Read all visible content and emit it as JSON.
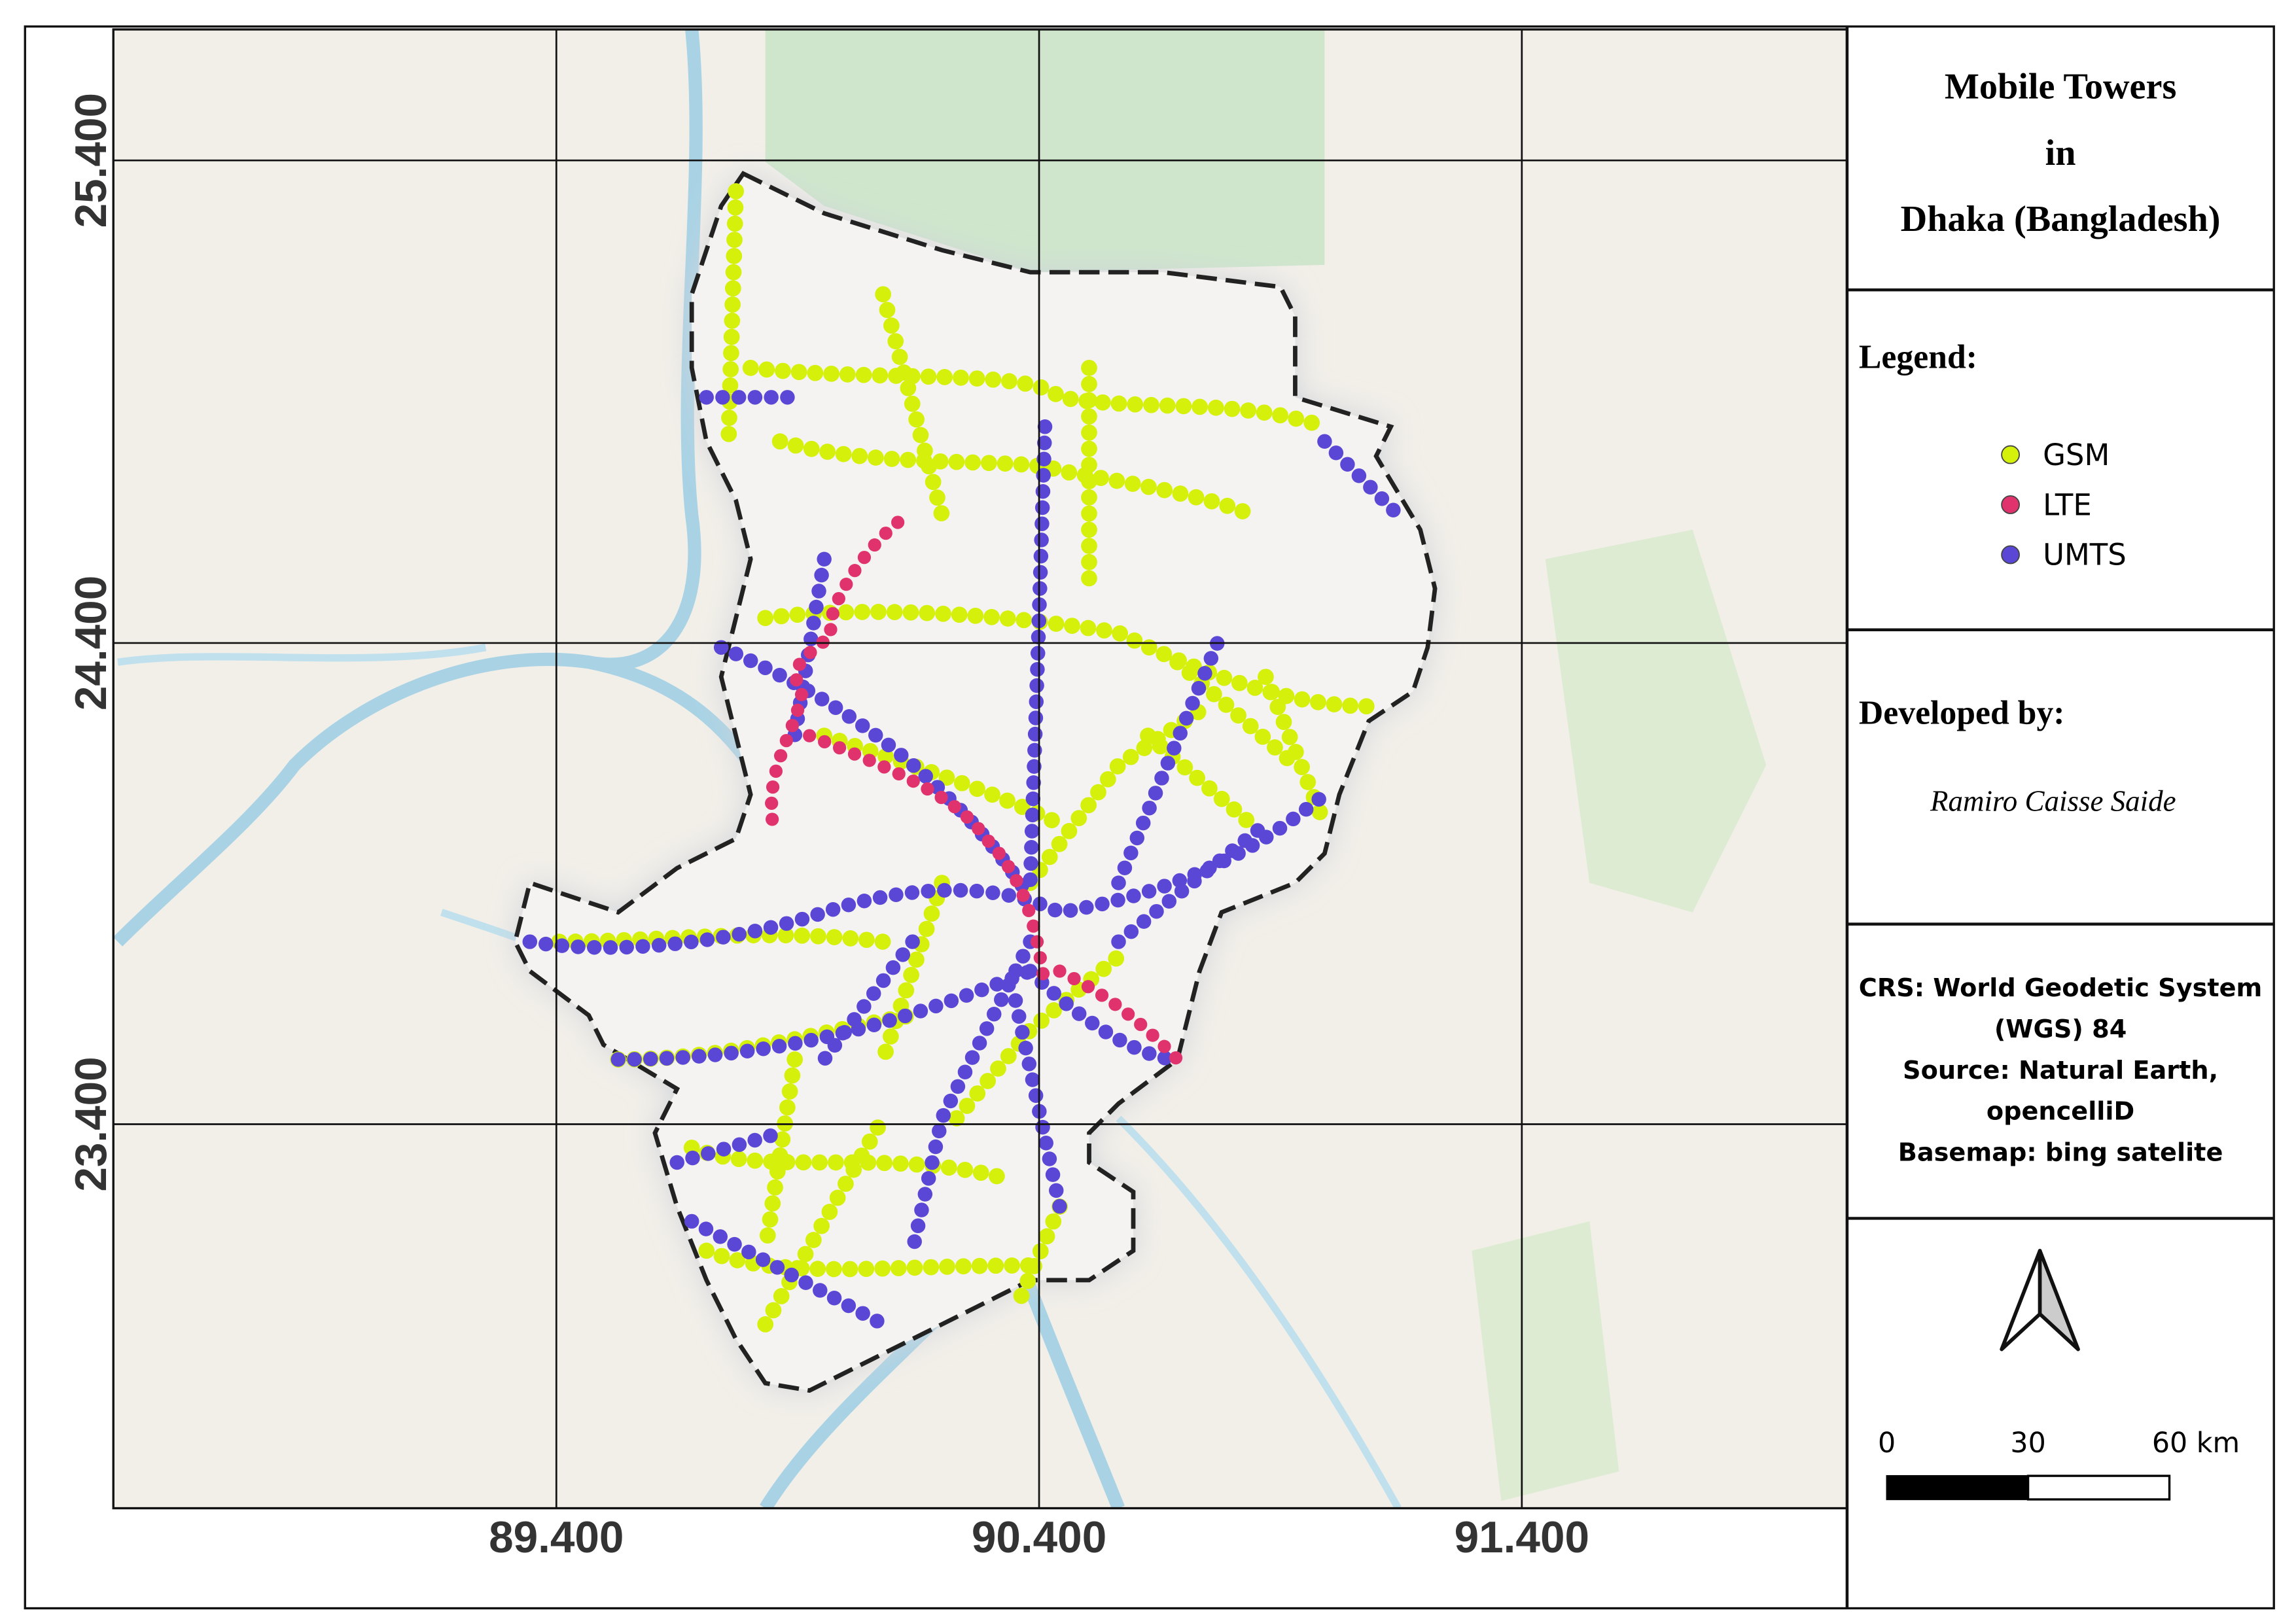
{
  "title_lines": [
    "Mobile Towers",
    "in",
    "Dhaka (Bangladesh)"
  ],
  "legend": {
    "title": "Legend:",
    "items": [
      {
        "label": "GSM",
        "color": "#d4f00b"
      },
      {
        "label": "LTE",
        "color": "#e0336e"
      },
      {
        "label": "UMTS",
        "color": "#5b47d6"
      }
    ]
  },
  "developed_by": {
    "heading": "Developed by:",
    "name": "Ramiro Caisse Saide"
  },
  "info_lines": [
    "CRS: World Geodetic System",
    "(WGS) 84",
    "Source: Natural Earth,",
    "opencelliD",
    "Basemap: bing satelite"
  ],
  "scale_bar": {
    "labels": [
      "0",
      "30",
      "60 km"
    ]
  },
  "grid": {
    "x_labels": [
      "89.400",
      "90.400",
      "91.400"
    ],
    "y_labels": [
      "25.400",
      "24.400",
      "23.400"
    ]
  }
}
